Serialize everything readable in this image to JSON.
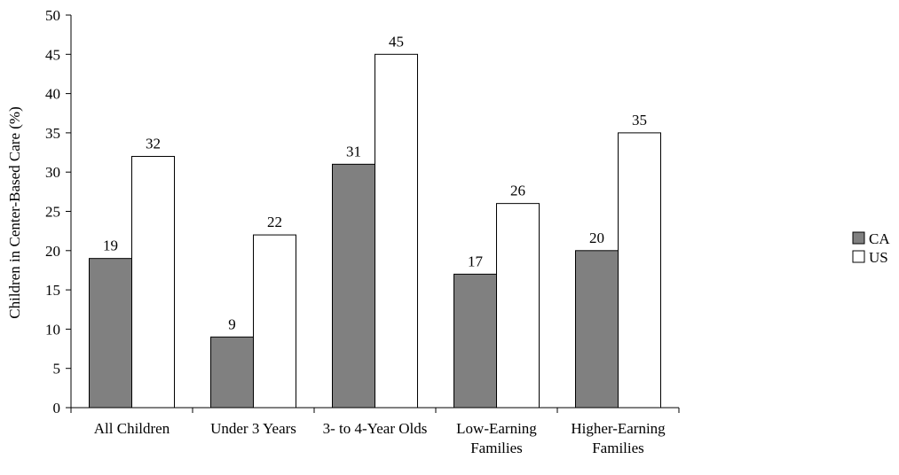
{
  "chart_data": {
    "type": "bar",
    "title": "",
    "xlabel": "",
    "ylabel": "Children in Center-Based Care (%)",
    "ylim": [
      0,
      50
    ],
    "yticks": [
      0,
      5,
      10,
      15,
      20,
      25,
      30,
      35,
      40,
      45,
      50
    ],
    "grid": false,
    "legend_position": "right",
    "categories": [
      [
        "All Children"
      ],
      [
        "Under 3 Years"
      ],
      [
        "3- to 4-Year Olds"
      ],
      [
        "Low-Earning",
        "Families"
      ],
      [
        "Higher-Earning",
        "Families"
      ]
    ],
    "series": [
      {
        "name": "CA",
        "color": "#808080",
        "values": [
          19,
          9,
          31,
          17,
          20
        ]
      },
      {
        "name": "US",
        "color": "#ffffff",
        "values": [
          32,
          22,
          45,
          26,
          35
        ]
      }
    ]
  }
}
